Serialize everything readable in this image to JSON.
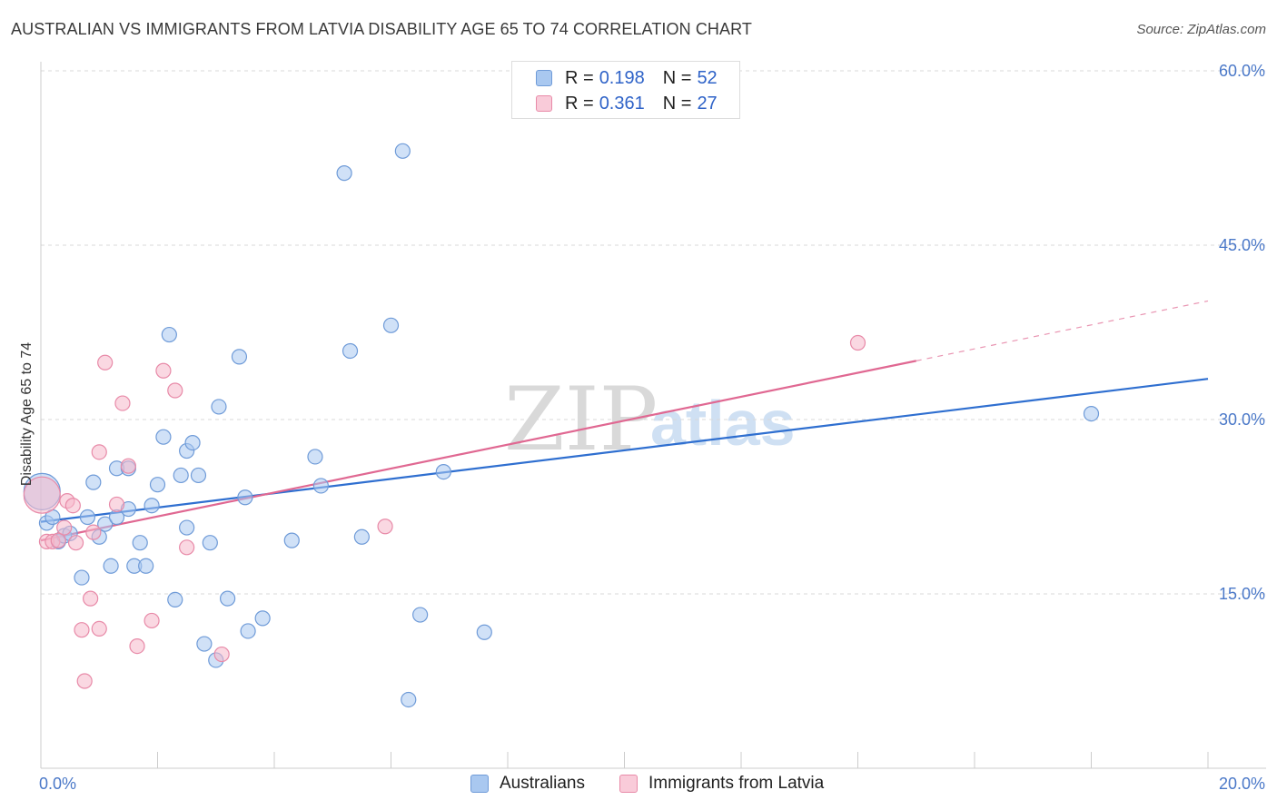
{
  "header": {
    "title": "AUSTRALIAN VS IMMIGRANTS FROM LATVIA DISABILITY AGE 65 TO 74 CORRELATION CHART",
    "source": "Source: ZipAtlas.com"
  },
  "legend": {
    "rows": [
      {
        "r_label": "R = ",
        "r_value": "0.198",
        "n_label": "N = ",
        "n_value": "52"
      },
      {
        "r_label": "R = ",
        "r_value": "0.361",
        "n_label": "N = ",
        "n_value": "27"
      }
    ]
  },
  "bottom_legend": {
    "items": [
      {
        "label": "Australians"
      },
      {
        "label": "Immigrants from Latvia"
      }
    ]
  },
  "watermark": {
    "text1": "ZIP",
    "text2": "atlas"
  },
  "colors": {
    "blue_fill": "#a9c8f0",
    "blue_stroke": "#6f9bd8",
    "blue_line": "#2f6fd0",
    "pink_fill": "#f5b8cb",
    "pink_stroke": "#e88aa8",
    "pink_line": "#e06892",
    "axis_text": "#4a78c8",
    "grid": "#d9d9d9"
  },
  "chart_data": {
    "type": "scatter",
    "title": "AUSTRALIAN VS IMMIGRANTS FROM LATVIA DISABILITY AGE 65 TO 74 CORRELATION CHART",
    "xlabel": "",
    "ylabel": "Disability Age 65 to 74",
    "xlim": [
      0,
      20
    ],
    "ylim": [
      0,
      60
    ],
    "x_tick_labels": [
      "0.0%",
      "20.0%"
    ],
    "y_ticks": [
      15,
      30,
      45,
      60
    ],
    "y_tick_labels": [
      "15.0%",
      "30.0%",
      "45.0%",
      "60.0%"
    ],
    "grid": true,
    "legend_position": "top-center",
    "series": [
      {
        "name": "Australians",
        "color": "#a9c8f0",
        "trend": {
          "x": [
            0,
            20
          ],
          "y": [
            21.2,
            33.5
          ],
          "dashed_from": null
        },
        "points": [
          {
            "x": 0.02,
            "y": 23.8,
            "big": true
          },
          {
            "x": 0.1,
            "y": 21.1
          },
          {
            "x": 0.2,
            "y": 21.6
          },
          {
            "x": 0.3,
            "y": 19.5
          },
          {
            "x": 0.4,
            "y": 20.0
          },
          {
            "x": 0.5,
            "y": 20.2
          },
          {
            "x": 0.7,
            "y": 16.4
          },
          {
            "x": 0.8,
            "y": 21.6
          },
          {
            "x": 0.9,
            "y": 24.6
          },
          {
            "x": 1.0,
            "y": 19.9
          },
          {
            "x": 1.1,
            "y": 21.0
          },
          {
            "x": 1.2,
            "y": 17.4
          },
          {
            "x": 1.3,
            "y": 21.6
          },
          {
            "x": 1.3,
            "y": 25.8
          },
          {
            "x": 1.5,
            "y": 25.8
          },
          {
            "x": 1.5,
            "y": 22.3
          },
          {
            "x": 1.6,
            "y": 17.4
          },
          {
            "x": 1.7,
            "y": 19.4
          },
          {
            "x": 1.8,
            "y": 17.4
          },
          {
            "x": 1.9,
            "y": 22.6
          },
          {
            "x": 2.0,
            "y": 24.4
          },
          {
            "x": 2.1,
            "y": 28.5
          },
          {
            "x": 2.2,
            "y": 37.3
          },
          {
            "x": 2.3,
            "y": 14.5
          },
          {
            "x": 2.4,
            "y": 25.2
          },
          {
            "x": 2.5,
            "y": 27.3
          },
          {
            "x": 2.5,
            "y": 20.7
          },
          {
            "x": 2.6,
            "y": 28.0
          },
          {
            "x": 2.7,
            "y": 25.2
          },
          {
            "x": 2.8,
            "y": 10.7
          },
          {
            "x": 2.9,
            "y": 19.4
          },
          {
            "x": 3.0,
            "y": 9.3
          },
          {
            "x": 3.05,
            "y": 31.1
          },
          {
            "x": 3.2,
            "y": 14.6
          },
          {
            "x": 3.4,
            "y": 35.4
          },
          {
            "x": 3.5,
            "y": 23.3
          },
          {
            "x": 3.55,
            "y": 11.8
          },
          {
            "x": 3.8,
            "y": 12.9
          },
          {
            "x": 4.3,
            "y": 19.6
          },
          {
            "x": 4.7,
            "y": 26.8
          },
          {
            "x": 4.8,
            "y": 24.3
          },
          {
            "x": 5.2,
            "y": 51.2
          },
          {
            "x": 5.3,
            "y": 35.9
          },
          {
            "x": 5.5,
            "y": 19.9
          },
          {
            "x": 6.0,
            "y": 38.1
          },
          {
            "x": 6.2,
            "y": 53.1
          },
          {
            "x": 6.3,
            "y": 5.9
          },
          {
            "x": 6.5,
            "y": 13.2
          },
          {
            "x": 6.9,
            "y": 25.5
          },
          {
            "x": 7.6,
            "y": 11.7
          },
          {
            "x": 18.0,
            "y": 30.5
          }
        ]
      },
      {
        "name": "Immigrants from Latvia",
        "color": "#f5b8cb",
        "trend": {
          "x": [
            0,
            20
          ],
          "y": [
            19.6,
            40.2
          ],
          "dashed_from": 15.0
        },
        "points": [
          {
            "x": 0.02,
            "y": 23.5,
            "big": true
          },
          {
            "x": 0.1,
            "y": 19.5
          },
          {
            "x": 0.2,
            "y": 19.5
          },
          {
            "x": 0.3,
            "y": 19.6
          },
          {
            "x": 0.4,
            "y": 20.7
          },
          {
            "x": 0.45,
            "y": 23.0
          },
          {
            "x": 0.55,
            "y": 22.6
          },
          {
            "x": 0.6,
            "y": 19.4
          },
          {
            "x": 0.7,
            "y": 11.9
          },
          {
            "x": 0.75,
            "y": 7.5
          },
          {
            "x": 0.85,
            "y": 14.6
          },
          {
            "x": 0.9,
            "y": 20.3
          },
          {
            "x": 1.0,
            "y": 27.2
          },
          {
            "x": 1.0,
            "y": 12.0
          },
          {
            "x": 1.1,
            "y": 34.9
          },
          {
            "x": 1.3,
            "y": 22.7
          },
          {
            "x": 1.4,
            "y": 31.4
          },
          {
            "x": 1.5,
            "y": 26.0
          },
          {
            "x": 1.65,
            "y": 10.5
          },
          {
            "x": 1.9,
            "y": 12.7
          },
          {
            "x": 2.1,
            "y": 34.2
          },
          {
            "x": 2.3,
            "y": 32.5
          },
          {
            "x": 2.5,
            "y": 19.0
          },
          {
            "x": 3.1,
            "y": 9.8
          },
          {
            "x": 5.9,
            "y": 20.8
          },
          {
            "x": 14.0,
            "y": 36.6
          }
        ]
      }
    ]
  }
}
